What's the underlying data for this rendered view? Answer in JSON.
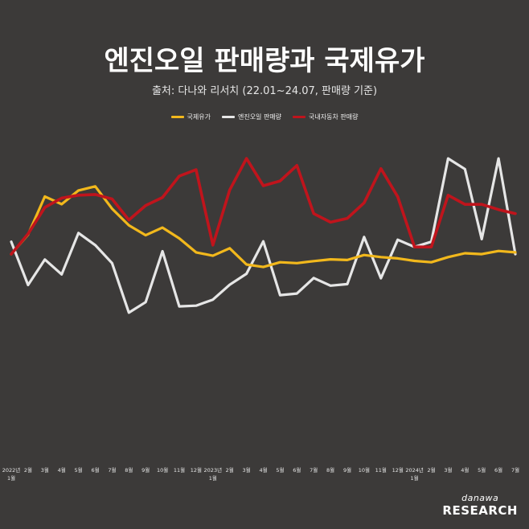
{
  "header": {
    "title": "엔진오일 판매량과 국제유가",
    "subtitle": "출처: 다나와 리서치 (22.01~24.07, 판매량 기준)"
  },
  "brand": {
    "top": "danawa",
    "bottom": "RESEARCH"
  },
  "chart_data": {
    "type": "line",
    "title": "엔진오일 판매량과 국제유가",
    "subtitle": "출처: 다나와 리서치 (22.01~24.07, 판매량 기준)",
    "legend_position": "top-center",
    "grid": false,
    "y_axis_visible": false,
    "ylim": [
      0,
      100
    ],
    "categories": [
      "2022년 1월",
      "2월",
      "3월",
      "4월",
      "5월",
      "6월",
      "7월",
      "8월",
      "9월",
      "10월",
      "11월",
      "12월",
      "2023년 1월",
      "2월",
      "3월",
      "4월",
      "5월",
      "6월",
      "7월",
      "8월",
      "9월",
      "10월",
      "11월",
      "12월",
      "2024년 1월",
      "2월",
      "3월",
      "4월",
      "5월",
      "6월",
      "7월"
    ],
    "tick_labels": [
      {
        "line1": "2022년",
        "line2": "1월"
      },
      {
        "line1": "2월"
      },
      {
        "line1": "3월"
      },
      {
        "line1": "4월"
      },
      {
        "line1": "5월"
      },
      {
        "line1": "6월"
      },
      {
        "line1": "7월"
      },
      {
        "line1": "8월"
      },
      {
        "line1": "9월"
      },
      {
        "line1": "10월"
      },
      {
        "line1": "11월"
      },
      {
        "line1": "12월"
      },
      {
        "line1": "2023년",
        "line2": "1월"
      },
      {
        "line1": "2월"
      },
      {
        "line1": "3월"
      },
      {
        "line1": "4월"
      },
      {
        "line1": "5월"
      },
      {
        "line1": "6월"
      },
      {
        "line1": "7월"
      },
      {
        "line1": "8월"
      },
      {
        "line1": "9월"
      },
      {
        "line1": "10월"
      },
      {
        "line1": "11월"
      },
      {
        "line1": "12월"
      },
      {
        "line1": "2024년",
        "line2": "1월"
      },
      {
        "line1": "2월"
      },
      {
        "line1": "3월"
      },
      {
        "line1": "4월"
      },
      {
        "line1": "5월"
      },
      {
        "line1": "6월"
      },
      {
        "line1": "7월"
      }
    ],
    "series": [
      {
        "name": "국제유가",
        "color": "#f2b81c",
        "values": [
          49.6,
          58.3,
          75.2,
          71.8,
          77.9,
          79.7,
          69.8,
          62.4,
          58.0,
          61.4,
          56.6,
          50.4,
          48.9,
          52.2,
          45.0,
          43.9,
          46.0,
          45.6,
          46.5,
          47.3,
          47.0,
          49.2,
          48.3,
          47.7,
          46.6,
          46.0,
          48.3,
          50.0,
          49.6,
          51.0,
          50.4
        ]
      },
      {
        "name": "엔진오일 판매량",
        "color": "#e6e6e6",
        "values": [
          55.1,
          35.9,
          47.2,
          40.6,
          59.0,
          53.6,
          45.6,
          23.6,
          28.3,
          50.9,
          26.4,
          26.7,
          29.4,
          36.0,
          40.9,
          55.3,
          31.4,
          32.1,
          39.0,
          35.6,
          36.3,
          57.2,
          38.9,
          56.0,
          52.8,
          55.1,
          92.1,
          87.4,
          56.3,
          92.1,
          49.6
        ]
      },
      {
        "name": "국내자동차 판매량",
        "color": "#c0141c",
        "values": [
          49.6,
          58.6,
          70.4,
          74.5,
          75.8,
          76.1,
          74.1,
          64.8,
          71.2,
          74.8,
          84.3,
          87.1,
          53.6,
          78.1,
          92.1,
          80.0,
          82.1,
          89.0,
          67.6,
          63.8,
          65.5,
          72.4,
          87.6,
          75.1,
          52.8,
          52.8,
          75.8,
          71.7,
          71.7,
          69.4,
          67.6
        ]
      }
    ]
  }
}
